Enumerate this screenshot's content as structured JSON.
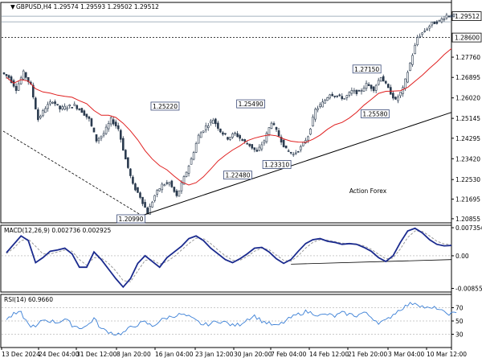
{
  "chart_data": [
    {
      "type": "candlestick",
      "panel": "price",
      "title": "GBPUSD,H4  1.29574 1.29593 1.29502 1.29512",
      "y_ticks": [
        1.20855,
        1.21695,
        1.2253,
        1.2342,
        1.24295,
        1.25145,
        1.2602,
        1.26895,
        1.2776
      ],
      "y_tick_labels": [
        "1.20855",
        "1.21695",
        "1.22530",
        "1.23420",
        "1.24295",
        "1.25145",
        "1.26020",
        "1.26895",
        "1.27760"
      ],
      "ylim": [
        1.2068,
        1.301
      ],
      "current_price": 1.29512,
      "current_price_label": "1.29512",
      "level_line": 1.286,
      "level_line_label": "1.28600",
      "moving_average_shown": true,
      "trendline_shown": true,
      "watermark": "Action Forex",
      "pivot_annotations": [
        {
          "label": "1.20990",
          "value": 1.2099,
          "date": "9 Jan"
        },
        {
          "label": "1.22480",
          "value": 1.2248,
          "date": "28 Jan"
        },
        {
          "label": "1.25220",
          "value": 1.2522,
          "date": "21 Jan"
        },
        {
          "label": "1.25490",
          "value": 1.2549,
          "date": "3 Feb"
        },
        {
          "label": "1.23310",
          "value": 1.2331,
          "date": "7 Feb"
        },
        {
          "label": "1.27150",
          "value": 1.2715,
          "date": "26 Feb"
        },
        {
          "label": "1.25580",
          "value": 1.2558,
          "date": "28 Feb"
        }
      ],
      "close_path": [
        {
          "date": "13 Dec",
          "close": 1.269
        },
        {
          "date": "16 Dec",
          "close": 1.264
        },
        {
          "date": "17 Dec",
          "close": 1.271
        },
        {
          "date": "18 Dec",
          "close": 1.2655
        },
        {
          "date": "19 Dec",
          "close": 1.251
        },
        {
          "date": "20 Dec",
          "close": 1.256
        },
        {
          "date": "23 Dec",
          "close": 1.259
        },
        {
          "date": "24 Dec",
          "close": 1.2555
        },
        {
          "date": "26 Dec",
          "close": 1.2565
        },
        {
          "date": "27 Dec",
          "close": 1.257
        },
        {
          "date": "30 Dec",
          "close": 1.2545
        },
        {
          "date": "31 Dec",
          "close": 1.251
        },
        {
          "date": "2 Jan",
          "close": 1.242
        },
        {
          "date": "3 Jan",
          "close": 1.245
        },
        {
          "date": "6 Jan",
          "close": 1.251
        },
        {
          "date": "7 Jan",
          "close": 1.247
        },
        {
          "date": "8 Jan",
          "close": 1.234
        },
        {
          "date": "9 Jan",
          "close": 1.223
        },
        {
          "date": "10 Jan",
          "close": 1.218
        },
        {
          "date": "13 Jan",
          "close": 1.211
        },
        {
          "date": "14 Jan",
          "close": 1.2185
        },
        {
          "date": "15 Jan",
          "close": 1.223
        },
        {
          "date": "16 Jan",
          "close": 1.224
        },
        {
          "date": "17 Jan",
          "close": 1.218
        },
        {
          "date": "20 Jan",
          "close": 1.226
        },
        {
          "date": "21 Jan",
          "close": 1.234
        },
        {
          "date": "22 Jan",
          "close": 1.244
        },
        {
          "date": "23 Jan",
          "close": 1.248
        },
        {
          "date": "24 Jan",
          "close": 1.251
        },
        {
          "date": "27 Jan",
          "close": 1.246
        },
        {
          "date": "28 Jan",
          "close": 1.243
        },
        {
          "date": "29 Jan",
          "close": 1.245
        },
        {
          "date": "30 Jan",
          "close": 1.242
        },
        {
          "date": "31 Jan",
          "close": 1.24
        },
        {
          "date": "3 Feb",
          "close": 1.237
        },
        {
          "date": "4 Feb",
          "close": 1.242
        },
        {
          "date": "5 Feb",
          "close": 1.25
        },
        {
          "date": "6 Feb",
          "close": 1.244
        },
        {
          "date": "7 Feb",
          "close": 1.238
        },
        {
          "date": "10 Feb",
          "close": 1.236
        },
        {
          "date": "11 Feb",
          "close": 1.239
        },
        {
          "date": "12 Feb",
          "close": 1.244
        },
        {
          "date": "13 Feb",
          "close": 1.255
        },
        {
          "date": "14 Feb",
          "close": 1.258
        },
        {
          "date": "17 Feb",
          "close": 1.262
        },
        {
          "date": "18 Feb",
          "close": 1.261
        },
        {
          "date": "19 Feb",
          "close": 1.26
        },
        {
          "date": "20 Feb",
          "close": 1.263
        },
        {
          "date": "21 Feb",
          "close": 1.2625
        },
        {
          "date": "24 Feb",
          "close": 1.266
        },
        {
          "date": "25 Feb",
          "close": 1.264
        },
        {
          "date": "26 Feb",
          "close": 1.2695
        },
        {
          "date": "27 Feb",
          "close": 1.264
        },
        {
          "date": "28 Feb",
          "close": 1.259
        },
        {
          "date": "3 Mar",
          "close": 1.264
        },
        {
          "date": "4 Mar",
          "close": 1.275
        },
        {
          "date": "5 Mar",
          "close": 1.286
        },
        {
          "date": "6 Mar",
          "close": 1.289
        },
        {
          "date": "7 Mar",
          "close": 1.292
        },
        {
          "date": "10 Mar",
          "close": 1.293
        },
        {
          "date": "11 Mar",
          "close": 1.2955
        },
        {
          "date": "12 Mar",
          "close": 1.2951
        }
      ]
    },
    {
      "type": "line",
      "panel": "macd",
      "title": "MACD(12,26,9) 0.002736 0.002925",
      "y_tick_labels": [
        "0.007354",
        "0.00",
        "-0.008558"
      ],
      "ylim": [
        -0.0095,
        0.008
      ],
      "series": [
        {
          "name": "MACD",
          "values": [
            0.0008,
            0.003,
            0.0052,
            0.004,
            -0.0018,
            -0.0005,
            0.0012,
            0.0015,
            0.002,
            0.0005,
            -0.003,
            -0.003,
            0.001,
            -0.001,
            -0.0035,
            -0.006,
            -0.0082,
            -0.006,
            -0.002,
            0.0,
            -0.0015,
            -0.003,
            -0.0005,
            0.001,
            0.0025,
            0.0045,
            0.0052,
            0.004,
            0.002,
            0.0005,
            -0.001,
            -0.0018,
            -0.0008,
            0.0005,
            0.002,
            0.0022,
            0.001,
            -0.0008,
            -0.002,
            -0.001,
            0.0012,
            0.0032,
            0.0042,
            0.0045,
            0.0038,
            0.0035,
            0.003,
            0.0032,
            0.003,
            0.0022,
            0.0012,
            -0.0005,
            -0.0015,
            0.0,
            0.0035,
            0.0065,
            0.0072,
            0.006,
            0.0042,
            0.003,
            0.0026,
            0.0027
          ]
        },
        {
          "name": "Signal",
          "values": [
            0.0006,
            0.002,
            0.004,
            0.0044,
            0.0025,
            0.0005,
            0.0005,
            0.001,
            0.0015,
            0.0012,
            -0.001,
            -0.0025,
            -0.0005,
            -0.0006,
            -0.002,
            -0.004,
            -0.0065,
            -0.0068,
            -0.004,
            -0.0012,
            -0.001,
            -0.0022,
            -0.0015,
            -0.0002,
            0.0015,
            0.0032,
            0.0046,
            0.0045,
            0.0032,
            0.0015,
            0.0,
            -0.0012,
            -0.0012,
            -0.0002,
            0.0012,
            0.002,
            0.0016,
            0.0002,
            -0.0012,
            -0.0014,
            0.0,
            0.002,
            0.0035,
            0.0042,
            0.0041,
            0.0037,
            0.0033,
            0.0032,
            0.0031,
            0.0026,
            0.0017,
            0.0004,
            -0.0008,
            -0.0006,
            0.0018,
            0.0048,
            0.0065,
            0.0064,
            0.0052,
            0.0038,
            0.0031,
            0.0029
          ]
        }
      ]
    },
    {
      "type": "line",
      "panel": "rsi",
      "title": "RSI(14) 60.9660",
      "y_tick_labels": [
        "70",
        "50",
        "30"
      ],
      "ylim": [
        10,
        90
      ],
      "series": [
        {
          "name": "RSI",
          "values": [
            52,
            60,
            62,
            45,
            40,
            52,
            50,
            48,
            53,
            44,
            40,
            42,
            54,
            38,
            34,
            30,
            32,
            40,
            45,
            48,
            42,
            50,
            55,
            58,
            60,
            56,
            50,
            44,
            46,
            50,
            48,
            43,
            45,
            53,
            58,
            50,
            46,
            42,
            48,
            55,
            60,
            64,
            62,
            58,
            60,
            57,
            62,
            60,
            58,
            63,
            56,
            48,
            50,
            60,
            68,
            74,
            78,
            72,
            68,
            70,
            62,
            61
          ]
        }
      ]
    }
  ],
  "x_axis_labels": [
    "13 Dec 2024",
    "24 Dec 04:00",
    "31 Dec 12:00",
    "8 Jan 20:00",
    "16 Jan 04:00",
    "23 Jan 12:00",
    "30 Jan 20:00",
    "7 Feb 04:00",
    "14 Feb 12:00",
    "21 Feb 20:00",
    "3 Mar 04:00",
    "10 Mar 12:00"
  ]
}
